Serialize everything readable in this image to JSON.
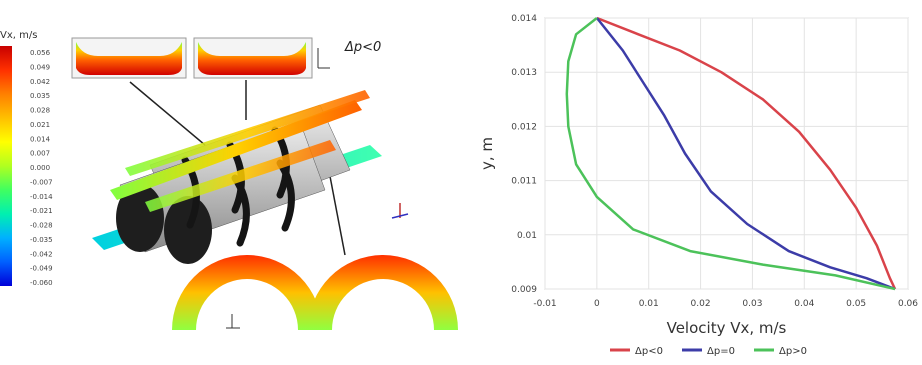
{
  "colorbar": {
    "title": "Vx, m/s",
    "ticks": [
      "0.056",
      "0.049",
      "0.042",
      "0.035",
      "0.028",
      "0.021",
      "0.014",
      "0.007",
      "0.000",
      "-0.007",
      "-0.014",
      "-0.021",
      "-0.028",
      "-0.035",
      "-0.042",
      "-0.049",
      "-0.060"
    ],
    "colors": [
      "#c80000",
      "#ff3000",
      "#ff8000",
      "#ffc000",
      "#ffff00",
      "#b0ff20",
      "#40ff60",
      "#00f0b0",
      "#00b0ff",
      "#0060ff",
      "#0000d8"
    ]
  },
  "figure": {
    "pressure_label": "Δp<0",
    "axis_label_z": "z",
    "axis_label_y": "y",
    "colors": {
      "barrel": "#c9c9c9",
      "barrel_dark": "#1e1e1e",
      "flight": "#151515"
    }
  },
  "chart_data": {
    "type": "line",
    "xlabel": "Velocity Vx, m/s",
    "ylabel": "y, m",
    "xlim": [
      -0.01,
      0.06
    ],
    "ylim": [
      0.009,
      0.014
    ],
    "x_ticks": [
      "-0.01",
      "0",
      "0.01",
      "0.02",
      "0.03",
      "0.04",
      "0.05",
      "0.06"
    ],
    "y_ticks": [
      "0.009",
      "0.01",
      "0.011",
      "0.012",
      "0.013",
      "0.014"
    ],
    "grid": true,
    "legend_position": "bottom",
    "series": [
      {
        "name": "Δp<0",
        "color": "#d9434a",
        "points": [
          [
            0.0,
            0.014
          ],
          [
            0.008,
            0.0137
          ],
          [
            0.016,
            0.0134
          ],
          [
            0.024,
            0.013
          ],
          [
            0.032,
            0.0125
          ],
          [
            0.039,
            0.0119
          ],
          [
            0.045,
            0.0112
          ],
          [
            0.05,
            0.0105
          ],
          [
            0.054,
            0.0098
          ],
          [
            0.0565,
            0.0092
          ],
          [
            0.0575,
            0.009
          ]
        ]
      },
      {
        "name": "Δp=0",
        "color": "#3c3ca8",
        "points": [
          [
            0.0,
            0.014
          ],
          [
            0.005,
            0.0134
          ],
          [
            0.009,
            0.0128
          ],
          [
            0.013,
            0.0122
          ],
          [
            0.017,
            0.0115
          ],
          [
            0.022,
            0.0108
          ],
          [
            0.029,
            0.0102
          ],
          [
            0.037,
            0.0097
          ],
          [
            0.045,
            0.0094
          ],
          [
            0.052,
            0.0092
          ],
          [
            0.0575,
            0.009
          ]
        ]
      },
      {
        "name": "Δp>0",
        "color": "#4cc25a",
        "points": [
          [
            0.0,
            0.014
          ],
          [
            -0.004,
            0.0137
          ],
          [
            -0.0055,
            0.0132
          ],
          [
            -0.0058,
            0.0126
          ],
          [
            -0.0055,
            0.012
          ],
          [
            -0.004,
            0.0113
          ],
          [
            0.0,
            0.0107
          ],
          [
            0.007,
            0.0101
          ],
          [
            0.018,
            0.0097
          ],
          [
            0.032,
            0.00945
          ],
          [
            0.046,
            0.00925
          ],
          [
            0.0575,
            0.009
          ]
        ]
      }
    ]
  }
}
